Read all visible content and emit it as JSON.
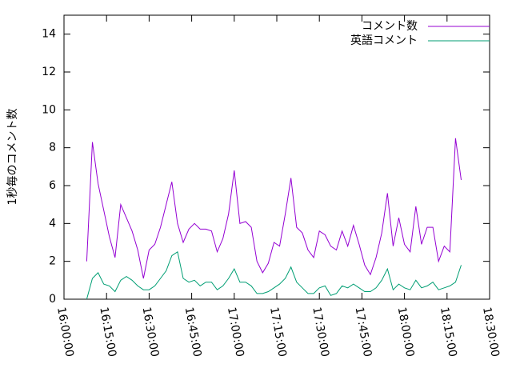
{
  "chart_data": {
    "type": "line",
    "ylabel": "1秒毎のコメント数",
    "x": [
      "16:08:00",
      "16:10:00",
      "16:12:00",
      "16:14:00",
      "16:16:00",
      "16:18:00",
      "16:20:00",
      "16:22:00",
      "16:24:00",
      "16:26:00",
      "16:28:00",
      "16:30:00",
      "16:32:00",
      "16:34:00",
      "16:36:00",
      "16:38:00",
      "16:40:00",
      "16:42:00",
      "16:44:00",
      "16:46:00",
      "16:48:00",
      "16:50:00",
      "16:52:00",
      "16:54:00",
      "16:56:00",
      "16:58:00",
      "17:00:00",
      "17:02:00",
      "17:04:00",
      "17:06:00",
      "17:08:00",
      "17:10:00",
      "17:12:00",
      "17:14:00",
      "17:16:00",
      "17:18:00",
      "17:20:00",
      "17:22:00",
      "17:24:00",
      "17:26:00",
      "17:28:00",
      "17:30:00",
      "17:32:00",
      "17:34:00",
      "17:36:00",
      "17:38:00",
      "17:40:00",
      "17:42:00",
      "17:44:00",
      "17:46:00",
      "17:48:00",
      "17:50:00",
      "17:52:00",
      "17:54:00",
      "17:56:00",
      "17:58:00",
      "18:00:00",
      "18:02:00",
      "18:04:00",
      "18:06:00",
      "18:08:00",
      "18:10:00",
      "18:12:00",
      "18:14:00",
      "18:16:00",
      "18:18:00",
      "18:20:00"
    ],
    "series": [
      {
        "name": "コメント数",
        "color": "#9400d3",
        "values": [
          2.0,
          8.3,
          6.1,
          4.7,
          3.3,
          2.2,
          5.0,
          4.3,
          3.6,
          2.6,
          1.1,
          2.6,
          2.9,
          3.8,
          5.0,
          6.2,
          4.0,
          3.0,
          3.7,
          4.0,
          3.7,
          3.7,
          3.6,
          2.5,
          3.2,
          4.5,
          6.8,
          4.0,
          4.1,
          3.8,
          2.0,
          1.4,
          1.9,
          3.0,
          2.8,
          4.5,
          6.4,
          3.8,
          3.5,
          2.6,
          2.2,
          3.6,
          3.4,
          2.8,
          2.6,
          3.6,
          2.8,
          3.9,
          2.9,
          1.8,
          1.3,
          2.2,
          3.5,
          5.6,
          2.8,
          4.3,
          2.9,
          2.5,
          4.9,
          2.9,
          3.8,
          3.8,
          2.0,
          2.8,
          2.5,
          8.5,
          6.3
        ]
      },
      {
        "name": "英語コメント",
        "color": "#009e73",
        "values": [
          0.0,
          1.1,
          1.4,
          0.8,
          0.7,
          0.4,
          1.0,
          1.2,
          1.0,
          0.7,
          0.5,
          0.5,
          0.7,
          1.1,
          1.5,
          2.3,
          2.5,
          1.1,
          0.9,
          1.0,
          0.7,
          0.9,
          0.9,
          0.5,
          0.7,
          1.1,
          1.6,
          0.9,
          0.9,
          0.7,
          0.3,
          0.3,
          0.4,
          0.6,
          0.8,
          1.1,
          1.7,
          0.9,
          0.6,
          0.3,
          0.3,
          0.6,
          0.7,
          0.2,
          0.3,
          0.7,
          0.6,
          0.8,
          0.6,
          0.4,
          0.4,
          0.6,
          1.0,
          1.6,
          0.5,
          0.8,
          0.6,
          0.5,
          1.0,
          0.6,
          0.7,
          0.9,
          0.5,
          0.6,
          0.7,
          0.9,
          1.8
        ]
      }
    ],
    "xlim": [
      "16:00:00",
      "18:30:00"
    ],
    "xticks": [
      "16:00:00",
      "16:15:00",
      "16:30:00",
      "16:45:00",
      "17:00:00",
      "17:15:00",
      "17:30:00",
      "17:45:00",
      "18:00:00",
      "18:15:00",
      "18:30:00"
    ],
    "ylim": [
      0,
      15
    ],
    "yticks": [
      0,
      2,
      4,
      6,
      8,
      10,
      12,
      14
    ],
    "legend": "upper right"
  }
}
